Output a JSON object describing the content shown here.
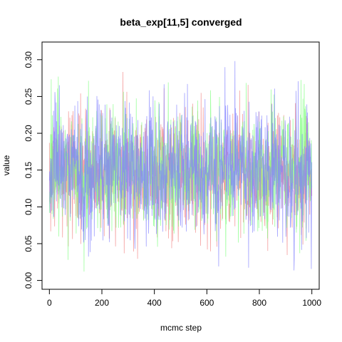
{
  "chart_data": {
    "type": "line",
    "title": "beta_exp[11,5] converged",
    "xlabel": "mcmc step",
    "ylabel": "value",
    "xlim": [
      -28,
      1028
    ],
    "ylim": [
      -0.012,
      0.324
    ],
    "x_ticks": [
      0,
      200,
      400,
      600,
      800,
      1000
    ],
    "x_tick_labels": [
      "0",
      "200",
      "400",
      "600",
      "800",
      "1000"
    ],
    "y_ticks": [
      0.0,
      0.05,
      0.1,
      0.15,
      0.2,
      0.25,
      0.3
    ],
    "y_tick_labels": [
      "0.00",
      "0.05",
      "0.10",
      "0.15",
      "0.20",
      "0.25",
      "0.30"
    ],
    "grid": false,
    "legend": "none",
    "x": {
      "start": 0,
      "end": 1000,
      "step": 1
    },
    "series": [
      {
        "color": "#f08080",
        "mean": 0.148,
        "sd": 0.042,
        "min": 0.012,
        "max": 0.298
      },
      {
        "color": "#7fff7f",
        "mean": 0.15,
        "sd": 0.042,
        "min": 0.01,
        "max": 0.284
      },
      {
        "color": "#7f7fff",
        "mean": 0.152,
        "sd": 0.044,
        "min": 0.008,
        "max": 0.312
      }
    ]
  }
}
